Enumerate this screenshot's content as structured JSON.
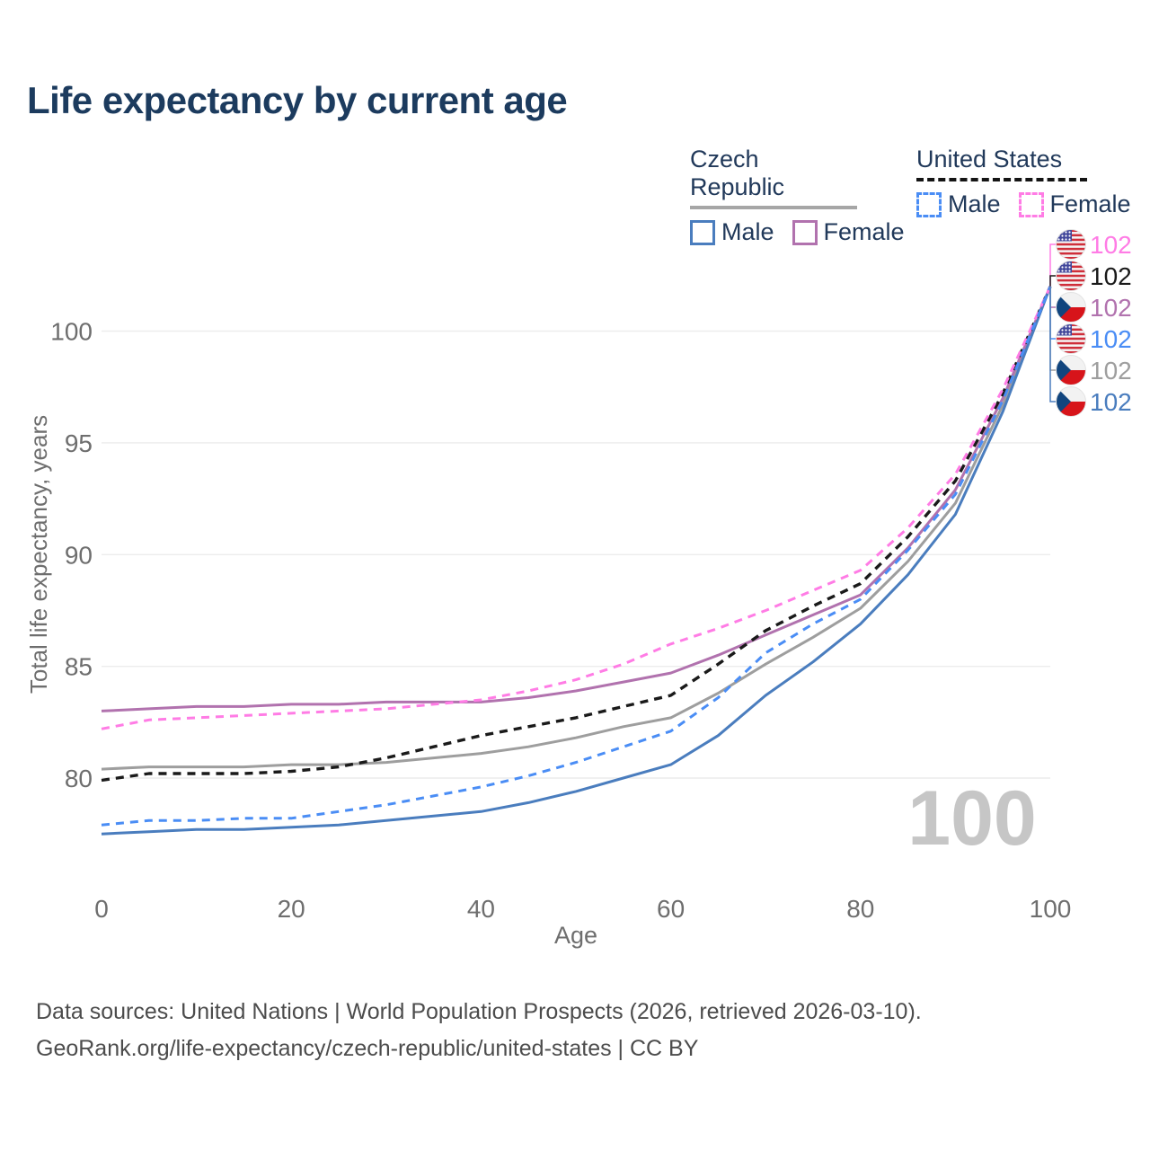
{
  "title": "Life expectancy by current age",
  "legend": {
    "groups": [
      {
        "label": "Czech Republic",
        "line_style": "solid",
        "line_color": "#a6a6a6",
        "items": [
          {
            "label": "Male",
            "color": "#4a7dbe",
            "dashed": false
          },
          {
            "label": "Female",
            "color": "#b172ae",
            "dashed": false
          }
        ]
      },
      {
        "label": "United States",
        "line_style": "dashed",
        "line_color": "#141414",
        "items": [
          {
            "label": "Male",
            "color": "#4a8df5",
            "dashed": true
          },
          {
            "label": "Female",
            "color": "#ff7ce5",
            "dashed": true
          }
        ]
      }
    ]
  },
  "watermark": "100",
  "end_labels": [
    {
      "flag": "us",
      "series": "United States Female",
      "value": "102",
      "color": "#ff7ce5"
    },
    {
      "flag": "us",
      "series": "United States Total",
      "value": "102",
      "color": "#1a1a1a"
    },
    {
      "flag": "cz",
      "series": "Czech Republic Female",
      "value": "102",
      "color": "#b172ae"
    },
    {
      "flag": "us",
      "series": "United States Male",
      "value": "102",
      "color": "#4a8df5"
    },
    {
      "flag": "cz",
      "series": "Czech Republic Total",
      "value": "102",
      "color": "#9e9e9e"
    },
    {
      "flag": "cz",
      "series": "Czech Republic Male",
      "value": "102",
      "color": "#4a7dbe"
    }
  ],
  "footer": {
    "line1": "Data sources: United Nations | World Population Prospects (2026, retrieved 2026-03-10).",
    "line2": "GeoRank.org/life-expectancy/czech-republic/united-states | CC BY"
  },
  "chart_data": {
    "type": "line",
    "title": "Life expectancy by current age",
    "xlabel": "Age",
    "ylabel": "Total life expectancy, years",
    "x": [
      0,
      5,
      10,
      15,
      20,
      25,
      30,
      35,
      40,
      45,
      50,
      55,
      60,
      65,
      70,
      75,
      80,
      85,
      90,
      95,
      100
    ],
    "xticks": [
      0,
      20,
      40,
      60,
      80,
      100
    ],
    "yticks": [
      80,
      85,
      90,
      95,
      100
    ],
    "xlim": [
      0,
      100
    ],
    "ylim": [
      77,
      103
    ],
    "grid": "horizontal",
    "legend_position": "top-right",
    "current_age_watermark": 100,
    "end_value_all_series": 102,
    "series": [
      {
        "name": "Czech Republic Total",
        "country": "Czech Republic",
        "group": "Total",
        "color": "#9e9e9e",
        "dashed": false,
        "values": [
          80.4,
          80.5,
          80.5,
          80.5,
          80.6,
          80.6,
          80.7,
          80.9,
          81.1,
          81.4,
          81.8,
          82.3,
          82.7,
          83.8,
          85.1,
          86.3,
          87.6,
          89.7,
          92.3,
          96.7,
          102
        ]
      },
      {
        "name": "Czech Republic Female",
        "country": "Czech Republic",
        "group": "Female",
        "color": "#b172ae",
        "dashed": false,
        "values": [
          83.0,
          83.1,
          83.2,
          83.2,
          83.3,
          83.3,
          83.4,
          83.4,
          83.4,
          83.6,
          83.9,
          84.3,
          84.7,
          85.5,
          86.4,
          87.3,
          88.2,
          90.3,
          92.9,
          97.0,
          102
        ]
      },
      {
        "name": "Czech Republic Male",
        "country": "Czech Republic",
        "group": "Male",
        "color": "#4a7dbe",
        "dashed": false,
        "values": [
          77.5,
          77.6,
          77.7,
          77.7,
          77.8,
          77.9,
          78.1,
          78.3,
          78.5,
          78.9,
          79.4,
          80.0,
          80.6,
          81.9,
          83.7,
          85.2,
          86.9,
          89.1,
          91.8,
          96.4,
          102
        ]
      },
      {
        "name": "United States Total",
        "country": "United States",
        "group": "Total",
        "color": "#1a1a1a",
        "dashed": true,
        "values": [
          79.9,
          80.2,
          80.2,
          80.2,
          80.3,
          80.5,
          80.9,
          81.4,
          81.9,
          82.3,
          82.7,
          83.2,
          83.7,
          85.1,
          86.6,
          87.7,
          88.7,
          90.8,
          93.3,
          97.2,
          102
        ]
      },
      {
        "name": "United States Female",
        "country": "United States",
        "group": "Female",
        "color": "#ff7ce5",
        "dashed": true,
        "values": [
          82.2,
          82.6,
          82.7,
          82.8,
          82.9,
          83.0,
          83.1,
          83.3,
          83.5,
          83.9,
          84.4,
          85.1,
          86.0,
          86.7,
          87.5,
          88.4,
          89.3,
          91.2,
          93.6,
          97.4,
          102
        ]
      },
      {
        "name": "United States Male",
        "country": "United States",
        "group": "Male",
        "color": "#4a8df5",
        "dashed": true,
        "values": [
          77.9,
          78.1,
          78.1,
          78.2,
          78.2,
          78.5,
          78.8,
          79.2,
          79.6,
          80.1,
          80.7,
          81.4,
          82.1,
          83.6,
          85.6,
          86.9,
          88.0,
          90.2,
          92.7,
          96.9,
          102
        ]
      }
    ]
  }
}
